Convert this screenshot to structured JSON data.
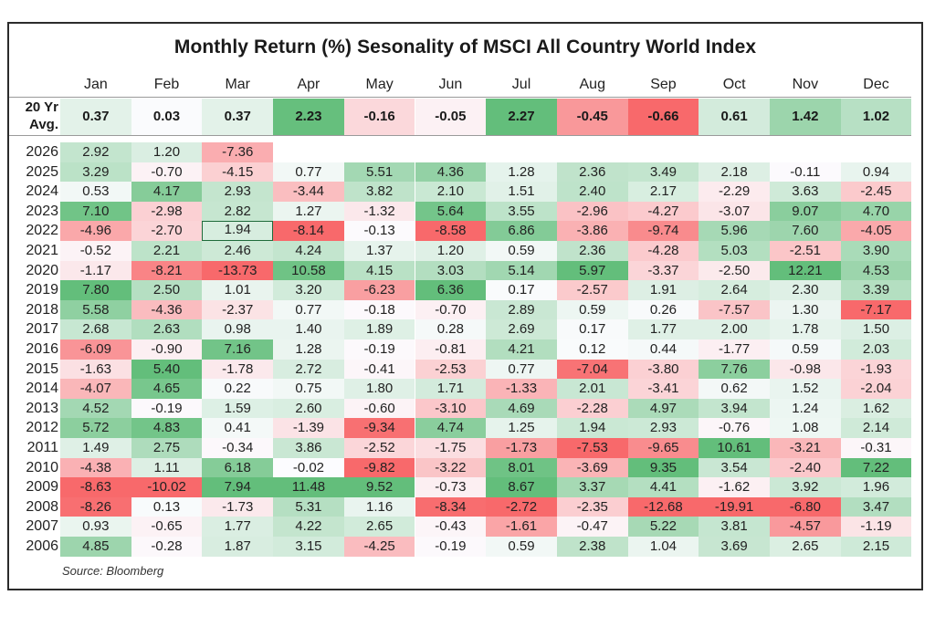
{
  "chart_data": {
    "type": "heatmap",
    "title": "Monthly Return (%) Sesonality of MSCI All Country World Index",
    "xlabel": "",
    "ylabel": "",
    "columns": [
      "Jan",
      "Feb",
      "Mar",
      "Apr",
      "May",
      "Jun",
      "Jul",
      "Aug",
      "Sep",
      "Oct",
      "Nov",
      "Dec"
    ],
    "average_row": {
      "label": "20 Yr Avg.",
      "label_lines": [
        "20 Yr",
        "Avg."
      ],
      "values": [
        0.37,
        0.03,
        0.37,
        2.23,
        -0.16,
        -0.05,
        2.27,
        -0.45,
        -0.66,
        0.61,
        1.42,
        1.02
      ]
    },
    "rows": [
      {
        "year": "2026",
        "values": [
          2.92,
          1.2,
          -7.36,
          null,
          null,
          null,
          null,
          null,
          null,
          null,
          null,
          null
        ]
      },
      {
        "year": "2025",
        "values": [
          3.29,
          -0.7,
          -4.15,
          0.77,
          5.51,
          4.36,
          1.28,
          2.36,
          3.49,
          2.18,
          -0.11,
          0.94
        ]
      },
      {
        "year": "2024",
        "values": [
          0.53,
          4.17,
          2.93,
          -3.44,
          3.82,
          2.1,
          1.51,
          2.4,
          2.17,
          -2.29,
          3.63,
          -2.45
        ]
      },
      {
        "year": "2023",
        "values": [
          7.1,
          -2.98,
          2.82,
          1.27,
          -1.32,
          5.64,
          3.55,
          -2.96,
          -4.27,
          -3.07,
          9.07,
          4.7
        ]
      },
      {
        "year": "2022",
        "values": [
          -4.96,
          -2.7,
          1.94,
          -8.14,
          -0.13,
          -8.58,
          6.86,
          -3.86,
          -9.74,
          5.96,
          7.6,
          -4.05
        ]
      },
      {
        "year": "2021",
        "values": [
          -0.52,
          2.21,
          2.46,
          4.24,
          1.37,
          1.2,
          0.59,
          2.36,
          -4.28,
          5.03,
          -2.51,
          3.9
        ]
      },
      {
        "year": "2020",
        "values": [
          -1.17,
          -8.21,
          -13.73,
          10.58,
          4.15,
          3.03,
          5.14,
          5.97,
          -3.37,
          -2.5,
          12.21,
          4.53
        ]
      },
      {
        "year": "2019",
        "values": [
          7.8,
          2.5,
          1.01,
          3.2,
          -6.23,
          6.36,
          0.17,
          -2.57,
          1.91,
          2.64,
          2.3,
          3.39
        ]
      },
      {
        "year": "2018",
        "values": [
          5.58,
          -4.36,
          -2.37,
          0.77,
          -0.18,
          -0.7,
          2.89,
          0.59,
          0.26,
          -7.57,
          1.3,
          -7.17
        ]
      },
      {
        "year": "2017",
        "values": [
          2.68,
          2.63,
          0.98,
          1.4,
          1.89,
          0.28,
          2.69,
          0.17,
          1.77,
          2.0,
          1.78,
          1.5
        ]
      },
      {
        "year": "2016",
        "values": [
          -6.09,
          -0.9,
          7.16,
          1.28,
          -0.19,
          -0.81,
          4.21,
          0.12,
          0.44,
          -1.77,
          0.59,
          2.03
        ]
      },
      {
        "year": "2015",
        "values": [
          -1.63,
          5.4,
          -1.78,
          2.72,
          -0.41,
          -2.53,
          0.77,
          -7.04,
          -3.8,
          7.76,
          -0.98,
          -1.93
        ]
      },
      {
        "year": "2014",
        "values": [
          -4.07,
          4.65,
          0.22,
          0.75,
          1.8,
          1.71,
          -1.33,
          2.01,
          -3.41,
          0.62,
          1.52,
          -2.04
        ]
      },
      {
        "year": "2013",
        "values": [
          4.52,
          -0.19,
          1.59,
          2.6,
          -0.6,
          -3.1,
          4.69,
          -2.28,
          4.97,
          3.94,
          1.24,
          1.62
        ]
      },
      {
        "year": "2012",
        "values": [
          5.72,
          4.83,
          0.41,
          -1.39,
          -9.34,
          4.74,
          1.25,
          1.94,
          2.93,
          -0.76,
          1.08,
          2.14
        ]
      },
      {
        "year": "2011",
        "values": [
          1.49,
          2.75,
          -0.34,
          3.86,
          -2.52,
          -1.75,
          -1.73,
          -7.53,
          -9.65,
          10.61,
          -3.21,
          -0.31
        ]
      },
      {
        "year": "2010",
        "values": [
          -4.38,
          1.11,
          6.18,
          -0.02,
          -9.82,
          -3.22,
          8.01,
          -3.69,
          9.35,
          3.54,
          -2.4,
          7.22
        ]
      },
      {
        "year": "2009",
        "values": [
          -8.63,
          -10.02,
          7.94,
          11.48,
          9.52,
          -0.73,
          8.67,
          3.37,
          4.41,
          -1.62,
          3.92,
          1.96
        ]
      },
      {
        "year": "2008",
        "values": [
          -8.26,
          0.13,
          -1.73,
          5.31,
          1.16,
          -8.34,
          -2.72,
          -2.35,
          -12.68,
          -19.91,
          -6.8,
          3.47
        ]
      },
      {
        "year": "2007",
        "values": [
          0.93,
          -0.65,
          1.77,
          4.22,
          2.65,
          -0.43,
          -1.61,
          -0.47,
          5.22,
          3.81,
          -4.57,
          -1.19
        ]
      },
      {
        "year": "2006",
        "values": [
          4.85,
          -0.28,
          1.87,
          3.15,
          -4.25,
          -0.19,
          0.59,
          2.38,
          1.04,
          3.69,
          2.65,
          2.15
        ]
      }
    ],
    "selected_cell": {
      "year": "2022",
      "column": "Mar"
    },
    "color_scale": {
      "negative": "#f8696b",
      "neutral": "#fcfcff",
      "positive": "#63be7b"
    },
    "source": "Source: Bloomberg"
  }
}
